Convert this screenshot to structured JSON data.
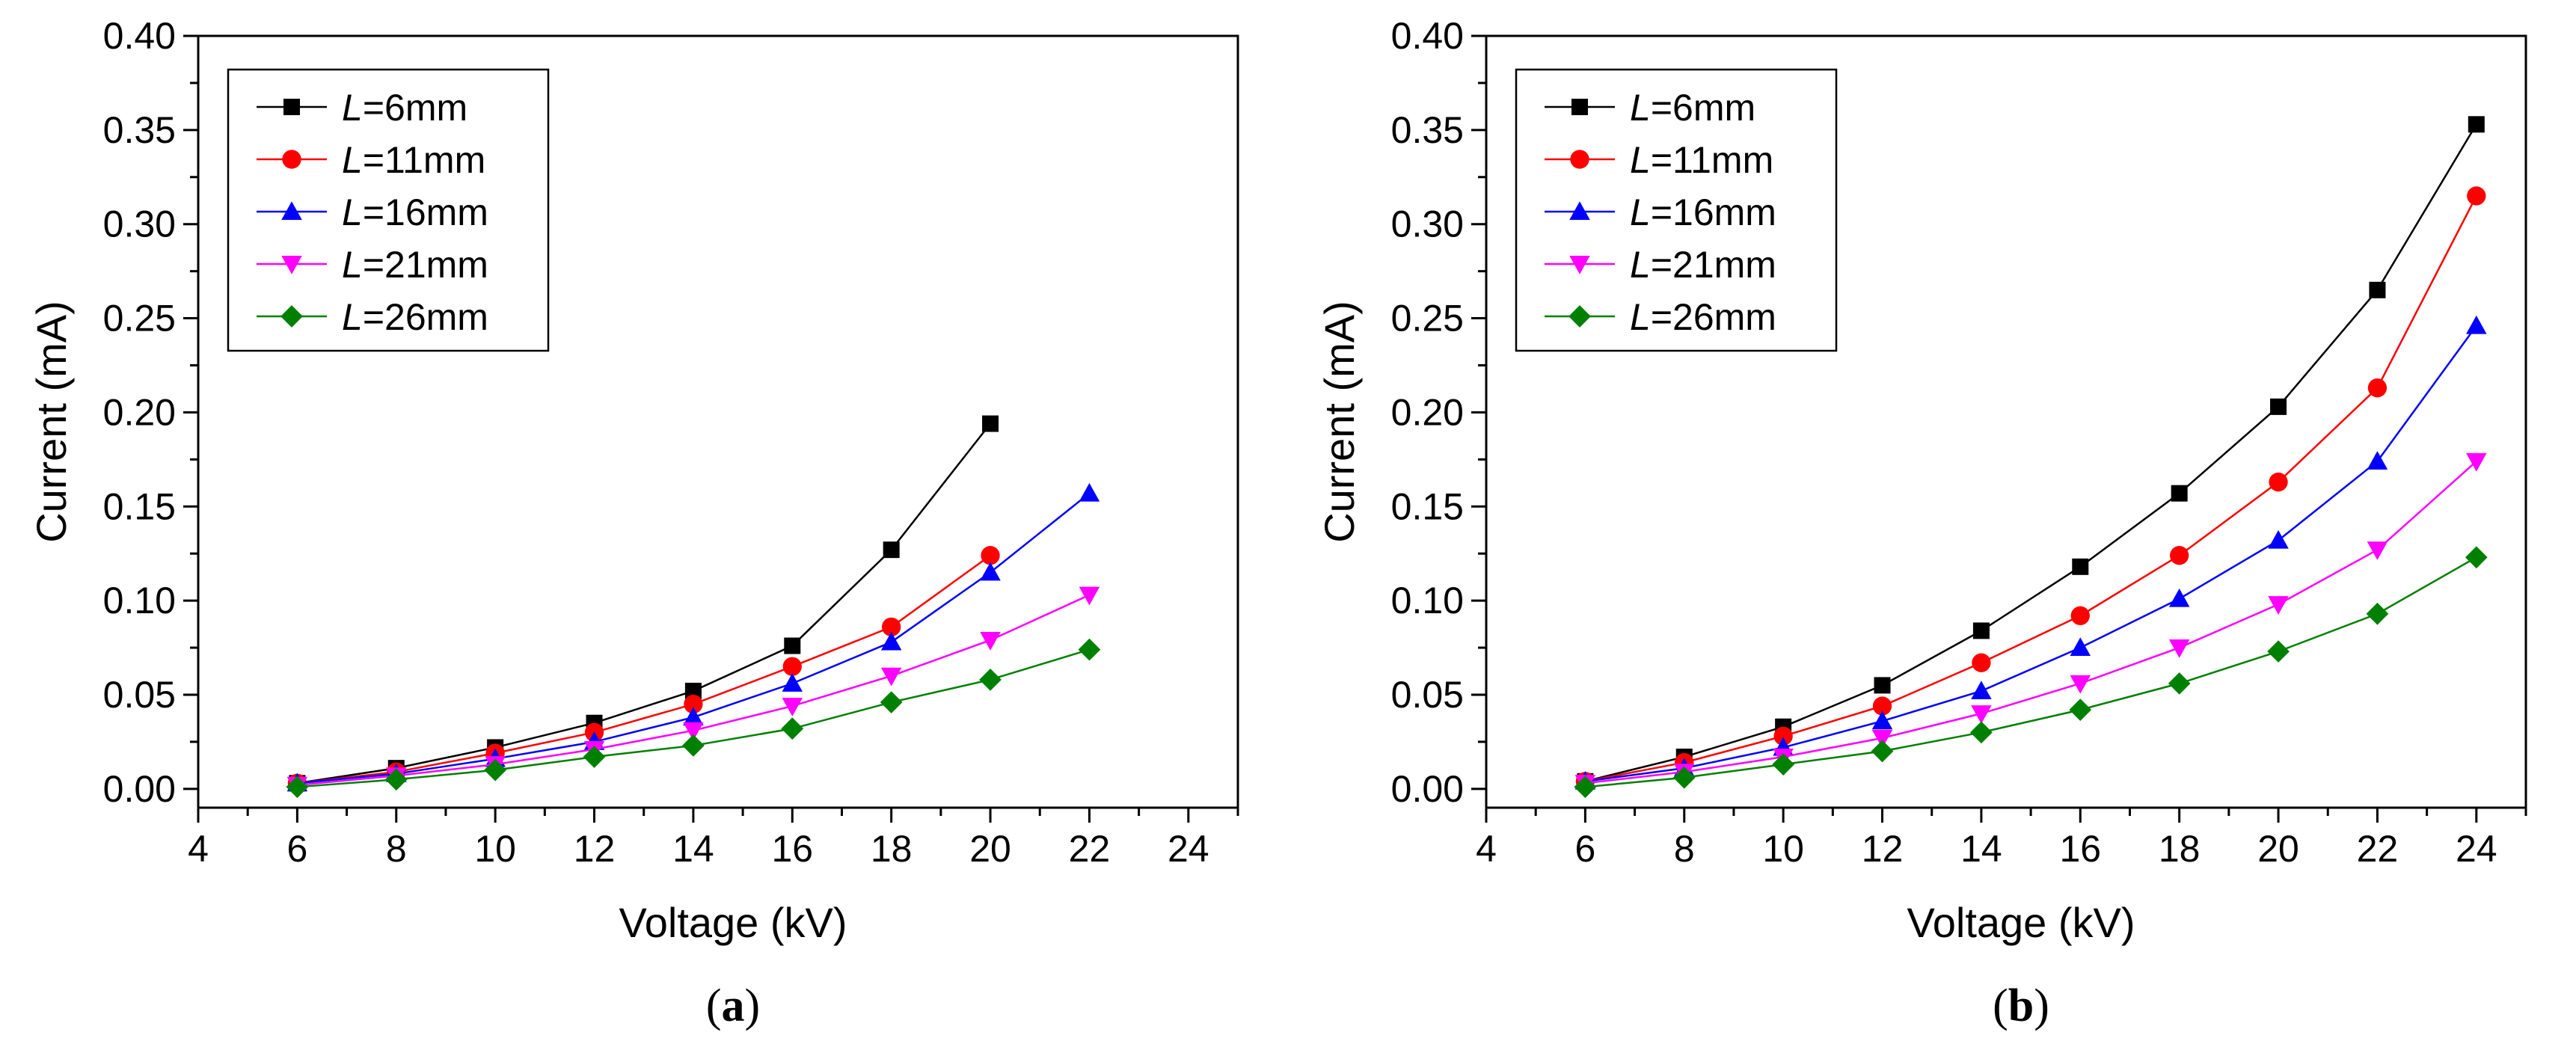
{
  "chart_data": [
    {
      "type": "line",
      "panel_label": "a",
      "xlabel": "Voltage (kV)",
      "ylabel": "Current (mA)",
      "xlim": [
        4,
        25
      ],
      "ylim": [
        -0.01,
        0.4
      ],
      "xticks": [
        4,
        6,
        8,
        10,
        12,
        14,
        16,
        18,
        20,
        22,
        24
      ],
      "xtick_labels": [
        "4",
        "6",
        "8",
        "10",
        "12",
        "14",
        "16",
        "18",
        "20",
        "22",
        "24"
      ],
      "yticks": [
        0.0,
        0.05,
        0.1,
        0.15,
        0.2,
        0.25,
        0.3,
        0.35,
        0.4
      ],
      "ytick_labels": [
        "0.00",
        "0.05",
        "0.10",
        "0.15",
        "0.20",
        "0.25",
        "0.30",
        "0.35",
        "0.40"
      ],
      "grid": false,
      "legend_position": "top-left",
      "series": [
        {
          "name_var": "L",
          "name_rest": "=6mm",
          "color": "#000000",
          "marker": "square",
          "x": [
            6,
            8,
            10,
            12,
            14,
            16,
            18,
            20
          ],
          "y": [
            0.003,
            0.011,
            0.022,
            0.035,
            0.052,
            0.076,
            0.127,
            0.194
          ]
        },
        {
          "name_var": "L",
          "name_rest": "=11mm",
          "color": "#ff0000",
          "marker": "circle",
          "x": [
            6,
            8,
            10,
            12,
            14,
            16,
            18,
            20
          ],
          "y": [
            0.003,
            0.009,
            0.019,
            0.03,
            0.045,
            0.065,
            0.086,
            0.124
          ]
        },
        {
          "name_var": "L",
          "name_rest": "=16mm",
          "color": "#0000ff",
          "marker": "triangle-up",
          "x": [
            6,
            8,
            10,
            12,
            14,
            16,
            18,
            20,
            22
          ],
          "y": [
            0.003,
            0.008,
            0.016,
            0.025,
            0.038,
            0.056,
            0.078,
            0.115,
            0.157
          ]
        },
        {
          "name_var": "L",
          "name_rest": "=21mm",
          "color": "#ff00ff",
          "marker": "triangle-down",
          "x": [
            6,
            8,
            10,
            12,
            14,
            16,
            18,
            20,
            22
          ],
          "y": [
            0.002,
            0.007,
            0.013,
            0.021,
            0.031,
            0.044,
            0.06,
            0.079,
            0.103
          ]
        },
        {
          "name_var": "L",
          "name_rest": "=26mm",
          "color": "#008000",
          "marker": "diamond",
          "x": [
            6,
            8,
            10,
            12,
            14,
            16,
            18,
            20,
            22
          ],
          "y": [
            0.001,
            0.005,
            0.01,
            0.017,
            0.023,
            0.032,
            0.046,
            0.058,
            0.074
          ]
        }
      ]
    },
    {
      "type": "line",
      "panel_label": "b",
      "xlabel": "Voltage (kV)",
      "ylabel": "Current (mA)",
      "xlim": [
        4,
        25
      ],
      "ylim": [
        -0.01,
        0.4
      ],
      "xticks": [
        4,
        6,
        8,
        10,
        12,
        14,
        16,
        18,
        20,
        22,
        24
      ],
      "xtick_labels": [
        "4",
        "6",
        "8",
        "10",
        "12",
        "14",
        "16",
        "18",
        "20",
        "22",
        "24"
      ],
      "yticks": [
        0.0,
        0.05,
        0.1,
        0.15,
        0.2,
        0.25,
        0.3,
        0.35,
        0.4
      ],
      "ytick_labels": [
        "0.00",
        "0.05",
        "0.10",
        "0.15",
        "0.20",
        "0.25",
        "0.30",
        "0.35",
        "0.40"
      ],
      "grid": false,
      "legend_position": "top-left",
      "series": [
        {
          "name_var": "L",
          "name_rest": "=6mm",
          "color": "#000000",
          "marker": "square",
          "x": [
            6,
            8,
            10,
            12,
            14,
            16,
            18,
            20,
            22,
            24
          ],
          "y": [
            0.004,
            0.017,
            0.033,
            0.055,
            0.084,
            0.118,
            0.157,
            0.203,
            0.265,
            0.353
          ]
        },
        {
          "name_var": "L",
          "name_rest": "=11mm",
          "color": "#ff0000",
          "marker": "circle",
          "x": [
            6,
            8,
            10,
            12,
            14,
            16,
            18,
            20,
            22,
            24
          ],
          "y": [
            0.004,
            0.014,
            0.028,
            0.044,
            0.067,
            0.092,
            0.124,
            0.163,
            0.213,
            0.315
          ]
        },
        {
          "name_var": "L",
          "name_rest": "=16mm",
          "color": "#0000ff",
          "marker": "triangle-up",
          "x": [
            6,
            8,
            10,
            12,
            14,
            16,
            18,
            20,
            22,
            24
          ],
          "y": [
            0.004,
            0.011,
            0.022,
            0.036,
            0.052,
            0.075,
            0.101,
            0.132,
            0.174,
            0.246
          ]
        },
        {
          "name_var": "L",
          "name_rest": "=21mm",
          "color": "#ff00ff",
          "marker": "triangle-down",
          "x": [
            6,
            8,
            10,
            12,
            14,
            16,
            18,
            20,
            22,
            24
          ],
          "y": [
            0.003,
            0.009,
            0.017,
            0.027,
            0.04,
            0.056,
            0.075,
            0.098,
            0.127,
            0.174
          ]
        },
        {
          "name_var": "L",
          "name_rest": "=26mm",
          "color": "#008000",
          "marker": "diamond",
          "x": [
            6,
            8,
            10,
            12,
            14,
            16,
            18,
            20,
            22,
            24
          ],
          "y": [
            0.001,
            0.006,
            0.013,
            0.02,
            0.03,
            0.042,
            0.056,
            0.073,
            0.093,
            0.123
          ]
        }
      ]
    }
  ]
}
